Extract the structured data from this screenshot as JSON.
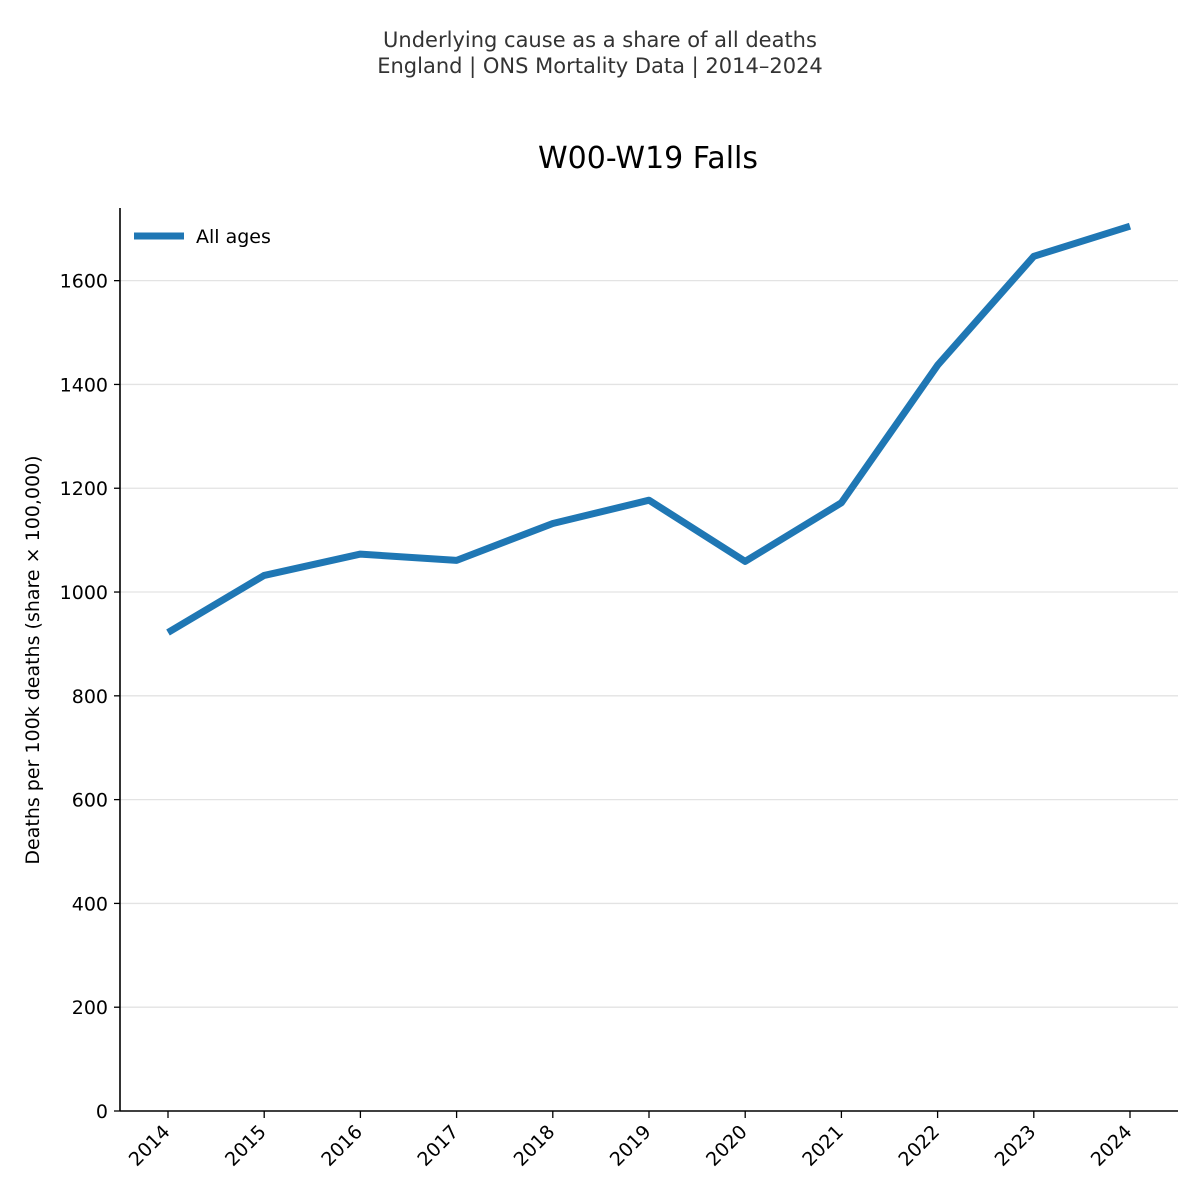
{
  "header": {
    "line1": "Underlying cause as a share of all deaths",
    "line2": "England | ONS Mortality Data | 2014–2024"
  },
  "chart_data": {
    "type": "line",
    "title": "W00-W19 Falls",
    "xlabel": "",
    "ylabel": "Deaths per 100k deaths (share × 100,000)",
    "categories": [
      "2014",
      "2015",
      "2016",
      "2017",
      "2018",
      "2019",
      "2020",
      "2021",
      "2022",
      "2023",
      "2024"
    ],
    "series": [
      {
        "name": "All ages",
        "color": "#1f77b4",
        "values": [
          922,
          1032,
          1073,
          1061,
          1132,
          1177,
          1059,
          1172,
          1437,
          1647,
          1705
        ]
      }
    ],
    "ylim": [
      0,
      1740
    ],
    "yticks": [
      0,
      200,
      400,
      600,
      800,
      1000,
      1200,
      1400,
      1600
    ],
    "grid": "horizontal",
    "legend_position": "top-left"
  }
}
